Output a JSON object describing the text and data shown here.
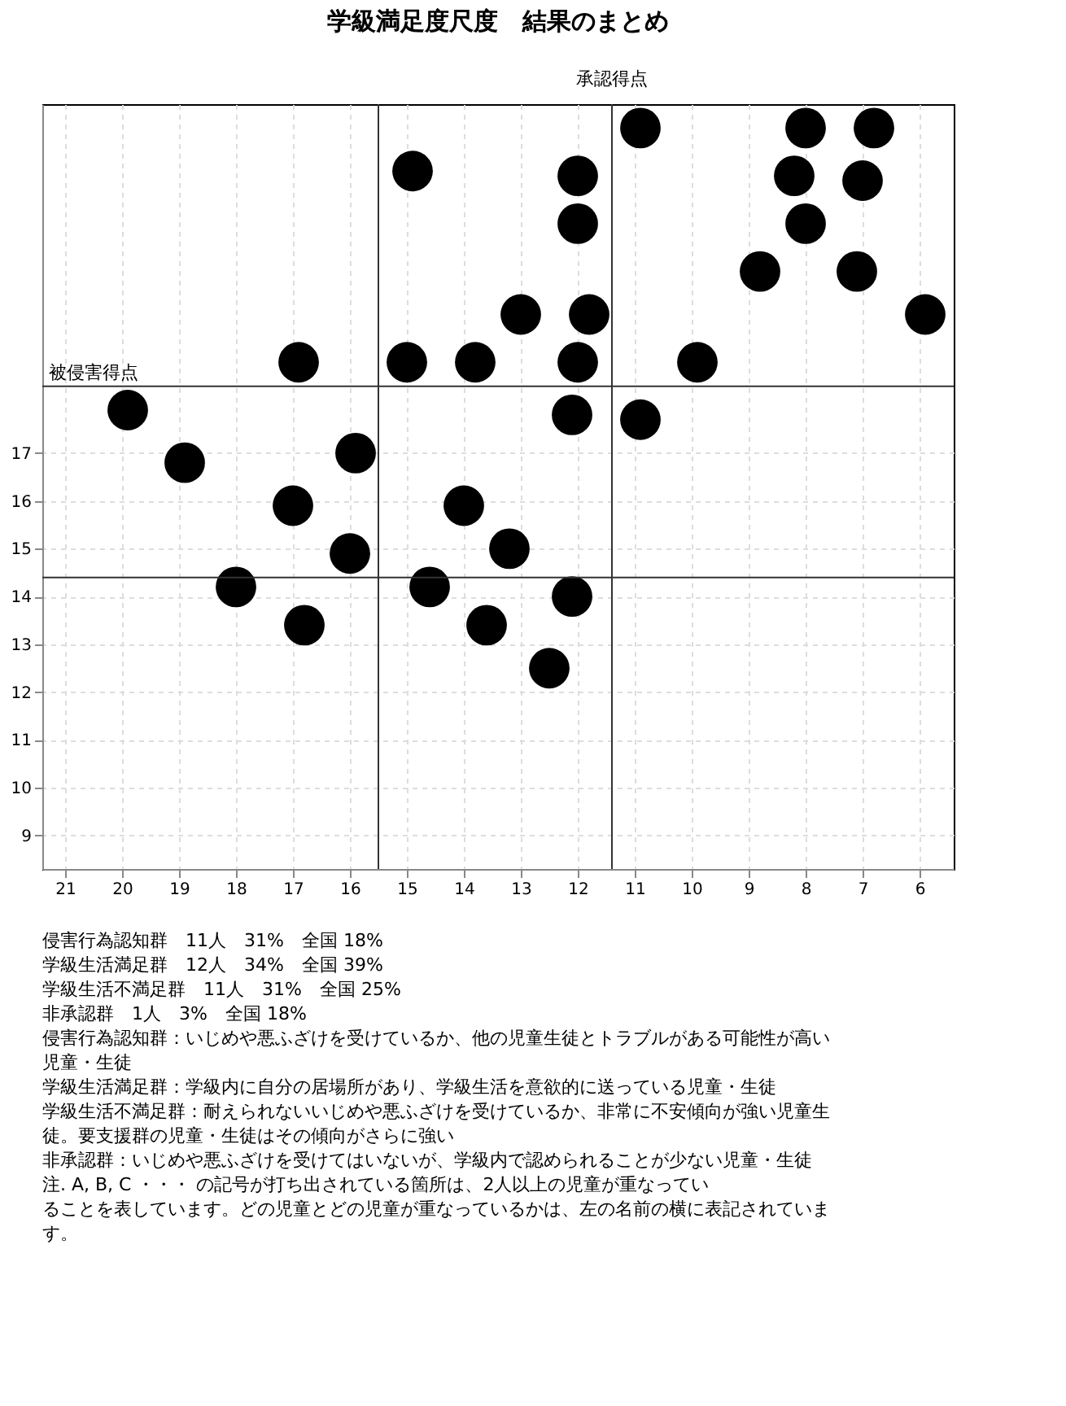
{
  "chart_data": {
    "type": "scatter",
    "title": "学級満足度尺度　結果のまとめ",
    "x": [
      10.9,
      8,
      6.8,
      14.9,
      12,
      8.2,
      7,
      12,
      8,
      8.8,
      7.1,
      13,
      11.8,
      5.9,
      16.9,
      15,
      13.8,
      12,
      9.9,
      19.9,
      12.1,
      10.9,
      18.9,
      15.9,
      17,
      14,
      16,
      13.2,
      18,
      14.6,
      12.1,
      16.8,
      13.6,
      12.5
    ],
    "values": [
      23.8,
      23.8,
      23.8,
      22.9,
      22.8,
      22.8,
      22.7,
      21.8,
      21.8,
      20.8,
      20.8,
      19.9,
      19.9,
      19.9,
      18.9,
      18.9,
      18.9,
      18.9,
      18.9,
      17.9,
      17.8,
      17.7,
      16.8,
      17,
      15.9,
      15.9,
      14.9,
      15,
      14.2,
      14.2,
      14,
      13.4,
      13.4,
      12.5
    ],
    "color": "#000000",
    "marker": "circle",
    "grid": true,
    "xlim": [
      21.4,
      5.4
    ],
    "ylim": [
      8.3,
      24.3
    ],
    "xticks": [
      21,
      20,
      19,
      18,
      17,
      16,
      15,
      14,
      13,
      12,
      11,
      10,
      9,
      8,
      7,
      6
    ],
    "yticks": [
      9,
      10,
      11,
      12,
      13,
      14,
      15,
      16,
      17
    ],
    "ref_lines": [
      {
        "axis": "x",
        "value": 11.4,
        "label": "承認得点"
      },
      {
        "axis": "y",
        "value": 18.4,
        "label": "被侵害得点"
      },
      {
        "axis": "x",
        "value": 15.5
      },
      {
        "axis": "y",
        "value": 14.4
      }
    ],
    "annotations": [
      "侵害行為認知群　11人　31%　全国 18%",
      "学級生活満足群　12人　34%　全国 39%",
      "学級生活不満足群　11人　31%　全国 25%",
      "非承認群　1人　3%　全国 18%",
      "侵害行為認知群：いじめや悪ふざけを受けているか、他の児童生徒とトラブルがある可能性が高い児童・生徒",
      "学級生活満足群：学級内に自分の居場所があり、学級生活を意欲的に送っている児童・生徒",
      "学級生活不満足群：耐えられないいじめや悪ふざけを受けているか、非常に不安傾向が強い児童生徒。要支援群の児童・生徒はその傾向がさらに強い",
      "非承認群：いじめや悪ふざけを受けてはいないが、学級内で認められることが少ない児童・生徒",
      "注. A, B, C ・・・ の記号が打ち出されている箇所は、2人以上の児童が重なっていることを表しています。どの児童とどの児童が重なっているかは、左の名前の横に表記されています。"
    ]
  }
}
